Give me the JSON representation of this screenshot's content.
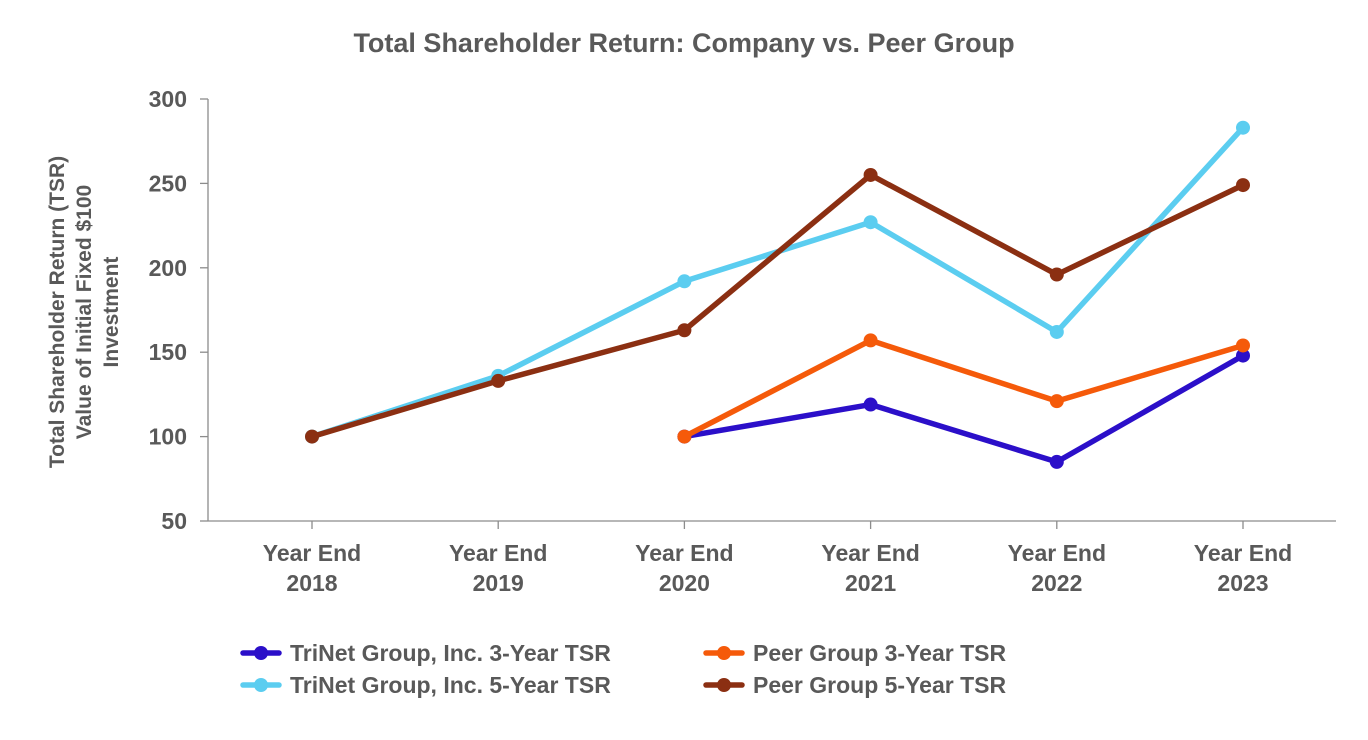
{
  "chart_data": {
    "type": "line",
    "title": "Total Shareholder Return: Company vs. Peer Group",
    "ylabel_lines": [
      "Total Shareholder Return (TSR)",
      "Value of Initial Fixed $100",
      "Investment"
    ],
    "xlabel": "",
    "categories": [
      [
        "Year End",
        "2018"
      ],
      [
        "Year End",
        "2019"
      ],
      [
        "Year End",
        "2020"
      ],
      [
        "Year End",
        "2021"
      ],
      [
        "Year End",
        "2022"
      ],
      [
        "Year End",
        "2023"
      ]
    ],
    "ylim": [
      50,
      300
    ],
    "yticks": [
      50,
      100,
      150,
      200,
      250,
      300
    ],
    "grid": false,
    "legend_position": "bottom",
    "series": [
      {
        "name": "TriNet Group, Inc. 5-Year TSR",
        "color": "#5bcdf0",
        "values": [
          100,
          136,
          192,
          227,
          162,
          283
        ]
      },
      {
        "name": "Peer Group 5-Year TSR",
        "color": "#8b2f12",
        "values": [
          100,
          133,
          163,
          255,
          196,
          249
        ]
      },
      {
        "name": "TriNet Group, Inc. 3-Year TSR",
        "color": "#2b0fc9",
        "values": [
          null,
          null,
          100,
          119,
          85,
          148
        ]
      },
      {
        "name": "Peer Group 3-Year TSR",
        "color": "#f55a0a",
        "values": [
          null,
          null,
          100,
          157,
          121,
          154
        ]
      }
    ],
    "legend_order": [
      "TriNet Group, Inc. 3-Year TSR",
      "Peer Group 3-Year TSR",
      "TriNet Group, Inc. 5-Year TSR",
      "Peer Group 5-Year TSR"
    ]
  }
}
